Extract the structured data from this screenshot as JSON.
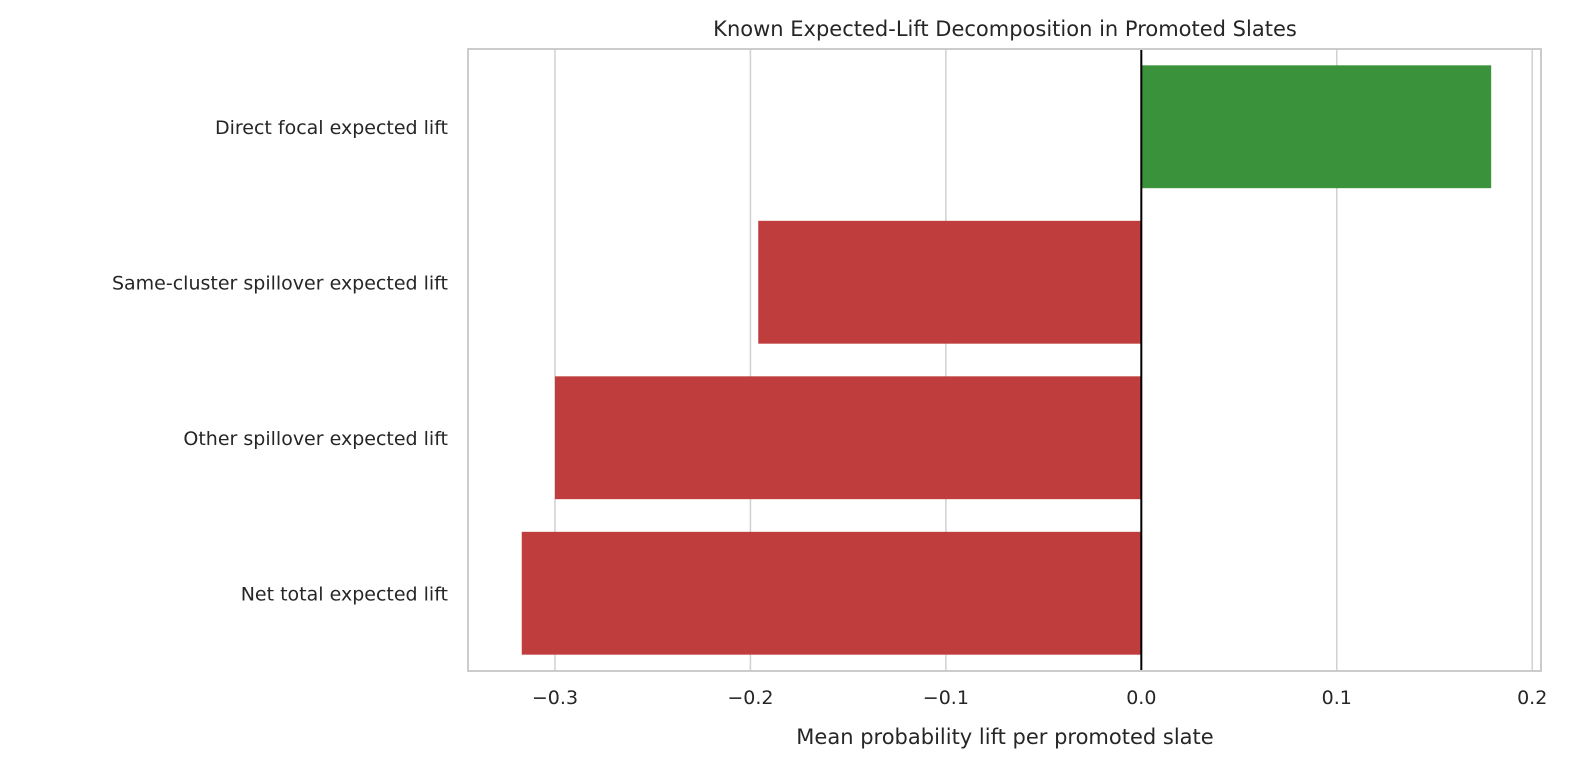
{
  "chart_data": {
    "type": "bar",
    "orientation": "horizontal",
    "title": "Known Expected-Lift Decomposition in Promoted Slates",
    "xlabel": "Mean probability lift per promoted slate",
    "ylabel": "",
    "categories": [
      "Direct focal expected lift",
      "Same-cluster spillover expected lift",
      "Other spillover expected lift",
      "Net total expected lift"
    ],
    "values": [
      0.179,
      -0.196,
      -0.3,
      -0.317
    ],
    "colors": [
      "#3a923a",
      "#c03d3e",
      "#c03d3e",
      "#c03d3e"
    ],
    "xlim": [
      -0.3445,
      0.2045
    ],
    "xticks": [
      -0.3,
      -0.2,
      -0.1,
      0.0,
      0.1,
      0.2
    ],
    "xtick_labels": [
      "−0.3",
      "−0.2",
      "−0.1",
      "0.0",
      "0.1",
      "0.2"
    ],
    "grid": true,
    "zero_line": true
  }
}
